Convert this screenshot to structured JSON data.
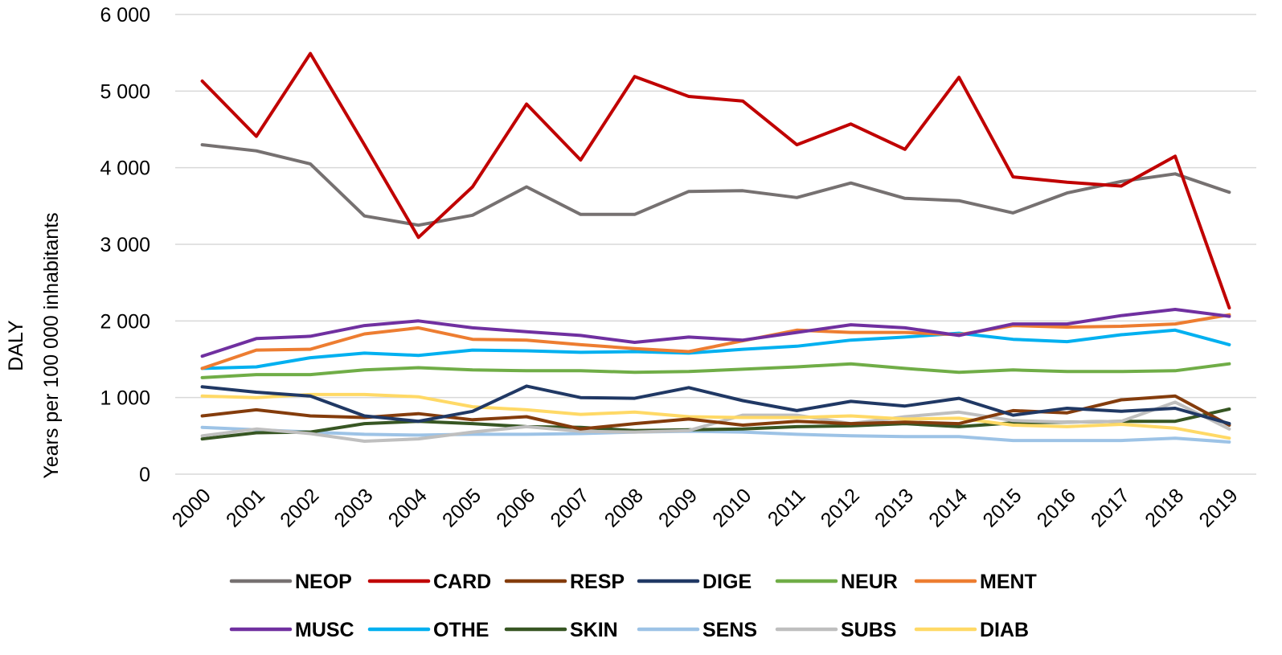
{
  "chart_data": {
    "type": "line",
    "title": "",
    "ylabel": "DALY",
    "ylabel2": "Years per 100 000 inhabitants",
    "xlabel": "",
    "ylim": [
      0,
      6000
    ],
    "yticks": [
      {
        "value": 0,
        "label": "0"
      },
      {
        "value": 1000,
        "label": "1 000"
      },
      {
        "value": 2000,
        "label": "2 000"
      },
      {
        "value": 3000,
        "label": "3 000"
      },
      {
        "value": 4000,
        "label": "4 000"
      },
      {
        "value": 5000,
        "label": "5 000"
      },
      {
        "value": 6000,
        "label": "6 000"
      }
    ],
    "grid": true,
    "legend_position": "bottom",
    "categories": [
      "2000",
      "2001",
      "2002",
      "2003",
      "2004",
      "2005",
      "2006",
      "2007",
      "2008",
      "2009",
      "2010",
      "2011",
      "2012",
      "2013",
      "2014",
      "2015",
      "2016",
      "2017",
      "2018",
      "2019"
    ],
    "series": [
      {
        "name": "NEOP",
        "color": "#767171",
        "values": [
          4300,
          4220,
          4050,
          3370,
          3250,
          3380,
          3750,
          3390,
          3390,
          3690,
          3700,
          3610,
          3800,
          3600,
          3570,
          3410,
          3670,
          3820,
          3920,
          3680
        ]
      },
      {
        "name": "CARD",
        "color": "#c00000",
        "values": [
          5130,
          4410,
          5490,
          4300,
          3090,
          3750,
          4830,
          4100,
          5190,
          4930,
          4870,
          4300,
          4570,
          4240,
          5180,
          3880,
          3810,
          3760,
          4150,
          2170
        ]
      },
      {
        "name": "RESP",
        "color": "#843c0c",
        "values": [
          760,
          840,
          760,
          740,
          790,
          710,
          750,
          590,
          660,
          720,
          640,
          690,
          660,
          680,
          660,
          830,
          800,
          970,
          1020,
          640
        ]
      },
      {
        "name": "DIGE",
        "color": "#203864",
        "values": [
          1140,
          1070,
          1020,
          760,
          690,
          820,
          1150,
          1000,
          990,
          1130,
          960,
          830,
          950,
          890,
          990,
          770,
          860,
          820,
          860,
          660
        ]
      },
      {
        "name": "NEUR",
        "color": "#70ad47",
        "values": [
          1260,
          1300,
          1300,
          1360,
          1390,
          1360,
          1350,
          1350,
          1330,
          1340,
          1370,
          1400,
          1440,
          1380,
          1330,
          1360,
          1340,
          1340,
          1350,
          1440
        ]
      },
      {
        "name": "MENT",
        "color": "#ed7d31",
        "values": [
          1380,
          1620,
          1630,
          1830,
          1910,
          1760,
          1750,
          1690,
          1640,
          1600,
          1740,
          1880,
          1850,
          1850,
          1820,
          1940,
          1920,
          1930,
          1960,
          2080
        ]
      },
      {
        "name": "MUSC",
        "color": "#7030a0",
        "values": [
          1540,
          1770,
          1800,
          1940,
          2000,
          1910,
          1860,
          1810,
          1720,
          1790,
          1750,
          1850,
          1950,
          1910,
          1810,
          1960,
          1960,
          2070,
          2150,
          2060
        ]
      },
      {
        "name": "OTHE",
        "color": "#00b0f0",
        "values": [
          1380,
          1400,
          1520,
          1580,
          1550,
          1620,
          1610,
          1590,
          1600,
          1580,
          1630,
          1670,
          1750,
          1790,
          1840,
          1760,
          1730,
          1820,
          1880,
          1690
        ]
      },
      {
        "name": "SKIN",
        "color": "#375623",
        "values": [
          460,
          540,
          550,
          660,
          690,
          660,
          620,
          610,
          570,
          580,
          590,
          620,
          630,
          660,
          620,
          670,
          680,
          690,
          690,
          850
        ]
      },
      {
        "name": "SENS",
        "color": "#9dc3e6",
        "values": [
          610,
          580,
          550,
          520,
          510,
          520,
          520,
          530,
          550,
          560,
          550,
          520,
          500,
          490,
          490,
          440,
          440,
          440,
          470,
          420
        ]
      },
      {
        "name": "SUBS",
        "color": "#bfbfbf",
        "values": [
          500,
          590,
          530,
          430,
          460,
          550,
          620,
          560,
          550,
          570,
          770,
          770,
          660,
          750,
          810,
          700,
          680,
          690,
          940,
          590
        ]
      },
      {
        "name": "DIAB",
        "color": "#ffd966",
        "values": [
          1020,
          1000,
          1040,
          1040,
          1010,
          880,
          840,
          780,
          810,
          750,
          740,
          740,
          760,
          720,
          730,
          640,
          620,
          650,
          600,
          470
        ]
      }
    ]
  }
}
